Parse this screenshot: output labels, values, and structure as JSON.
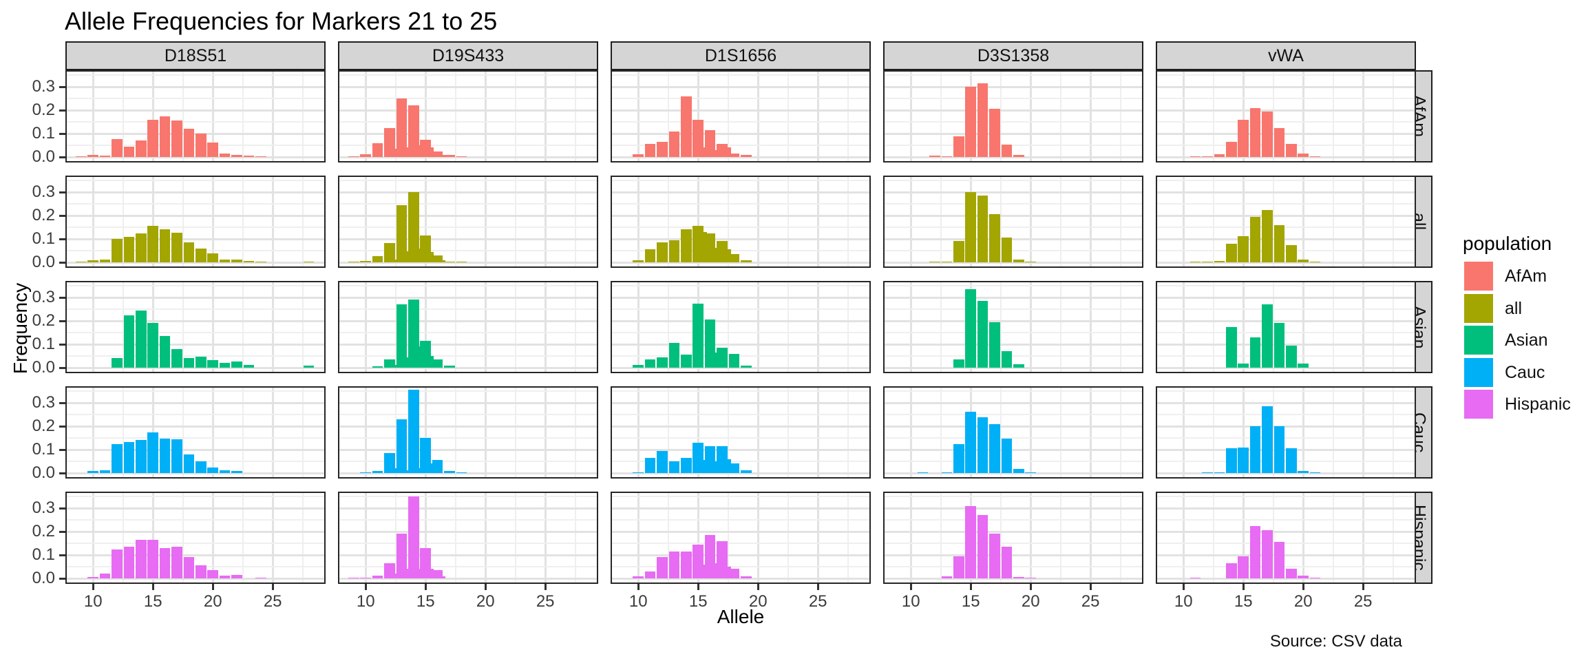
{
  "title": "Allele Frequencies for Markers 21 to 25",
  "source_note": "Source: CSV data",
  "axes": {
    "x_label": "Allele",
    "y_label": "Frequency",
    "x_tick_labels": [
      "10",
      "15",
      "20",
      "25"
    ],
    "y_tick_labels": [
      "0.0",
      "0.1",
      "0.2",
      "0.3"
    ]
  },
  "legend": {
    "title": "population",
    "entries": [
      {
        "label": "AfAm",
        "color": "#F8766D"
      },
      {
        "label": "all",
        "color": "#A3A500"
      },
      {
        "label": "Asian",
        "color": "#00BF7D"
      },
      {
        "label": "Cauc",
        "color": "#00B0F6"
      },
      {
        "label": "Hispanic",
        "color": "#E76BF3"
      }
    ]
  },
  "chart_data": {
    "type": "bar",
    "title": "Allele Frequencies for Markers 21 to 25",
    "xlabel": "Allele",
    "ylabel": "Frequency",
    "facet_columns": [
      "D18S51",
      "D19S433",
      "D1S1656",
      "D3S1358",
      "vWA"
    ],
    "facet_rows": [
      "AfAm",
      "all",
      "Asian",
      "Cauc",
      "Hispanic"
    ],
    "legend_position": "right",
    "grid": true,
    "x_ticks": [
      10,
      15,
      20,
      25
    ],
    "x_minor_ticks": [
      12.5,
      17.5,
      22.5,
      27.5
    ],
    "y_ticks": [
      0,
      0.1,
      0.2,
      0.3
    ],
    "y_minor_ticks": [
      0.05,
      0.15,
      0.25,
      0.35
    ],
    "x_domain": [
      7.8,
      29.3
    ],
    "y_domain": [
      0,
      0.3655
    ],
    "bar_width": 0.9,
    "colors": {
      "AfAm": "#F8766D",
      "all": "#A3A500",
      "Asian": "#00BF7D",
      "Cauc": "#00B0F6",
      "Hispanic": "#E76BF3"
    },
    "series": [
      {
        "marker": "D18S51",
        "population": "AfAm",
        "alleles": [
          9,
          10,
          11,
          12,
          13,
          14,
          15,
          16,
          17,
          18,
          19,
          20,
          21,
          22,
          23,
          24
        ],
        "freqs": [
          0.004,
          0.008,
          0.006,
          0.076,
          0.044,
          0.07,
          0.16,
          0.175,
          0.155,
          0.122,
          0.099,
          0.063,
          0.015,
          0.01,
          0.006,
          0.004
        ]
      },
      {
        "marker": "D18S51",
        "population": "all",
        "alleles": [
          9,
          10,
          11,
          12,
          13,
          14,
          15,
          16,
          17,
          18,
          19,
          20,
          21,
          22,
          23,
          24,
          28
        ],
        "freqs": [
          0.003,
          0.008,
          0.012,
          0.1,
          0.108,
          0.125,
          0.157,
          0.14,
          0.127,
          0.085,
          0.06,
          0.038,
          0.013,
          0.011,
          0.005,
          0.003,
          0.003
        ]
      },
      {
        "marker": "D18S51",
        "population": "Asian",
        "alleles": [
          12,
          13,
          14,
          15,
          16,
          17,
          18,
          19,
          20,
          21,
          22,
          23,
          28
        ],
        "freqs": [
          0.042,
          0.225,
          0.245,
          0.19,
          0.135,
          0.08,
          0.04,
          0.047,
          0.033,
          0.02,
          0.026,
          0.012,
          0.008
        ]
      },
      {
        "marker": "D18S51",
        "population": "Cauc",
        "alleles": [
          10,
          11,
          12,
          13,
          14,
          15,
          16,
          17,
          18,
          19,
          20,
          21,
          22
        ],
        "freqs": [
          0.01,
          0.013,
          0.125,
          0.132,
          0.141,
          0.175,
          0.148,
          0.143,
          0.08,
          0.05,
          0.025,
          0.012,
          0.009
        ]
      },
      {
        "marker": "D18S51",
        "population": "Hispanic",
        "alleles": [
          10,
          11,
          12,
          13,
          14,
          15,
          16,
          17,
          18,
          19,
          20,
          21,
          22,
          24
        ],
        "freqs": [
          0.005,
          0.022,
          0.125,
          0.135,
          0.165,
          0.164,
          0.13,
          0.135,
          0.09,
          0.055,
          0.035,
          0.011,
          0.015,
          0.004
        ]
      },
      {
        "marker": "D19S433",
        "population": "AfAm",
        "alleles": [
          9,
          10,
          11,
          12,
          12.2,
          13,
          13.2,
          14,
          14.2,
          15,
          15.2,
          16,
          16.2,
          17,
          18
        ],
        "freqs": [
          0.002,
          0.012,
          0.06,
          0.125,
          0.035,
          0.25,
          0.04,
          0.22,
          0.05,
          0.075,
          0.04,
          0.025,
          0.01,
          0.008,
          0.004
        ]
      },
      {
        "marker": "D19S433",
        "population": "all",
        "alleles": [
          9,
          10,
          11,
          12,
          12.2,
          13,
          13.2,
          14,
          14.2,
          15,
          15.2,
          16,
          16.2,
          17,
          18
        ],
        "freqs": [
          0.002,
          0.006,
          0.026,
          0.082,
          0.012,
          0.243,
          0.048,
          0.3,
          0.06,
          0.115,
          0.045,
          0.03,
          0.008,
          0.004,
          0.002
        ]
      },
      {
        "marker": "D19S433",
        "population": "Asian",
        "alleles": [
          11,
          12,
          12.2,
          13,
          13.2,
          14,
          14.2,
          15,
          15.2,
          16,
          17
        ],
        "freqs": [
          0.005,
          0.035,
          0.012,
          0.27,
          0.045,
          0.29,
          0.09,
          0.115,
          0.05,
          0.035,
          0.008
        ]
      },
      {
        "marker": "D19S433",
        "population": "Cauc",
        "alleles": [
          10,
          11,
          12,
          12.2,
          13,
          13.2,
          14,
          14.2,
          15,
          15.2,
          16,
          17,
          18
        ],
        "freqs": [
          0.004,
          0.008,
          0.085,
          0.02,
          0.23,
          0.012,
          0.355,
          0.022,
          0.15,
          0.04,
          0.055,
          0.008,
          0.004
        ]
      },
      {
        "marker": "D19S433",
        "population": "Hispanic",
        "alleles": [
          9,
          10,
          11,
          12,
          12.2,
          13,
          13.2,
          14,
          14.2,
          15,
          15.2,
          16,
          16.2
        ],
        "freqs": [
          0.003,
          0.004,
          0.012,
          0.065,
          0.02,
          0.19,
          0.04,
          0.35,
          0.04,
          0.13,
          0.04,
          0.035,
          0.008
        ]
      },
      {
        "marker": "D1S1656",
        "population": "AfAm",
        "alleles": [
          10,
          11,
          12,
          13,
          14,
          15,
          15.3,
          16,
          16.3,
          17,
          17.3,
          18,
          19
        ],
        "freqs": [
          0.012,
          0.055,
          0.065,
          0.11,
          0.26,
          0.16,
          0.04,
          0.115,
          0.03,
          0.055,
          0.04,
          0.016,
          0.008
        ]
      },
      {
        "marker": "D1S1656",
        "population": "all",
        "alleles": [
          10,
          11,
          12,
          13,
          14,
          15,
          15.3,
          16,
          16.3,
          17,
          17.3,
          18,
          19
        ],
        "freqs": [
          0.008,
          0.055,
          0.085,
          0.095,
          0.14,
          0.157,
          0.13,
          0.125,
          0.062,
          0.09,
          0.055,
          0.035,
          0.008
        ]
      },
      {
        "marker": "D1S1656",
        "population": "Asian",
        "alleles": [
          10,
          11,
          12,
          13,
          14,
          15,
          16,
          16.3,
          17,
          18,
          19
        ],
        "freqs": [
          0.012,
          0.035,
          0.045,
          0.105,
          0.055,
          0.275,
          0.205,
          0.065,
          0.085,
          0.06,
          0.008
        ]
      },
      {
        "marker": "D1S1656",
        "population": "Cauc",
        "alleles": [
          10,
          11,
          12,
          13,
          14,
          15,
          15.3,
          16,
          16.3,
          17,
          17.3,
          18,
          19
        ],
        "freqs": [
          0.004,
          0.065,
          0.095,
          0.05,
          0.065,
          0.13,
          0.055,
          0.115,
          0.05,
          0.115,
          0.06,
          0.04,
          0.012
        ]
      },
      {
        "marker": "D1S1656",
        "population": "Hispanic",
        "alleles": [
          10,
          11,
          12,
          13,
          14,
          15,
          15.3,
          16,
          16.3,
          17,
          17.3,
          18,
          19
        ],
        "freqs": [
          0.008,
          0.03,
          0.09,
          0.115,
          0.115,
          0.145,
          0.06,
          0.185,
          0.065,
          0.16,
          0.05,
          0.04,
          0.008
        ]
      },
      {
        "marker": "D3S1358",
        "population": "AfAm",
        "alleles": [
          12,
          13,
          14,
          15,
          16,
          17,
          18,
          19
        ],
        "freqs": [
          0.005,
          0.004,
          0.088,
          0.3,
          0.315,
          0.205,
          0.053,
          0.008
        ]
      },
      {
        "marker": "D3S1358",
        "population": "all",
        "alleles": [
          12,
          13,
          14,
          15,
          16,
          17,
          18,
          19,
          20
        ],
        "freqs": [
          0.002,
          0.004,
          0.09,
          0.3,
          0.285,
          0.207,
          0.105,
          0.012,
          0.002
        ]
      },
      {
        "marker": "D3S1358",
        "population": "Asian",
        "alleles": [
          14,
          15,
          16,
          17,
          18,
          19
        ],
        "freqs": [
          0.035,
          0.335,
          0.285,
          0.195,
          0.07,
          0.015
        ]
      },
      {
        "marker": "D3S1358",
        "population": "Cauc",
        "alleles": [
          11,
          13,
          14,
          15,
          16,
          17,
          18,
          19,
          20
        ],
        "freqs": [
          0.002,
          0.003,
          0.125,
          0.263,
          0.237,
          0.21,
          0.148,
          0.018,
          0.003
        ]
      },
      {
        "marker": "D3S1358",
        "population": "Hispanic",
        "alleles": [
          13,
          14,
          15,
          16,
          17,
          18,
          19,
          20
        ],
        "freqs": [
          0.008,
          0.095,
          0.31,
          0.272,
          0.19,
          0.135,
          0.006,
          0.003
        ]
      },
      {
        "marker": "vWA",
        "population": "AfAm",
        "alleles": [
          11,
          12,
          13,
          14,
          15,
          16,
          17,
          18,
          19,
          20,
          21
        ],
        "freqs": [
          0.003,
          0.004,
          0.011,
          0.066,
          0.16,
          0.208,
          0.195,
          0.125,
          0.056,
          0.016,
          0.003
        ]
      },
      {
        "marker": "vWA",
        "population": "all",
        "alleles": [
          11,
          12,
          13,
          14,
          15,
          16,
          17,
          18,
          19,
          20,
          21
        ],
        "freqs": [
          0.002,
          0.002,
          0.005,
          0.08,
          0.112,
          0.195,
          0.225,
          0.16,
          0.075,
          0.012,
          0.002
        ]
      },
      {
        "marker": "vWA",
        "population": "Asian",
        "alleles": [
          14,
          15,
          16,
          17,
          18,
          19,
          20
        ],
        "freqs": [
          0.175,
          0.018,
          0.128,
          0.27,
          0.19,
          0.095,
          0.018
        ]
      },
      {
        "marker": "vWA",
        "population": "Cauc",
        "alleles": [
          12,
          13,
          14,
          15,
          16,
          17,
          18,
          19,
          20,
          21
        ],
        "freqs": [
          0.002,
          0.004,
          0.105,
          0.11,
          0.2,
          0.285,
          0.2,
          0.105,
          0.01,
          0.003
        ]
      },
      {
        "marker": "vWA",
        "population": "Hispanic",
        "alleles": [
          11,
          14,
          15,
          16,
          17,
          18,
          19,
          20,
          21
        ],
        "freqs": [
          0.003,
          0.065,
          0.095,
          0.225,
          0.205,
          0.155,
          0.04,
          0.012,
          0.003
        ]
      }
    ]
  }
}
